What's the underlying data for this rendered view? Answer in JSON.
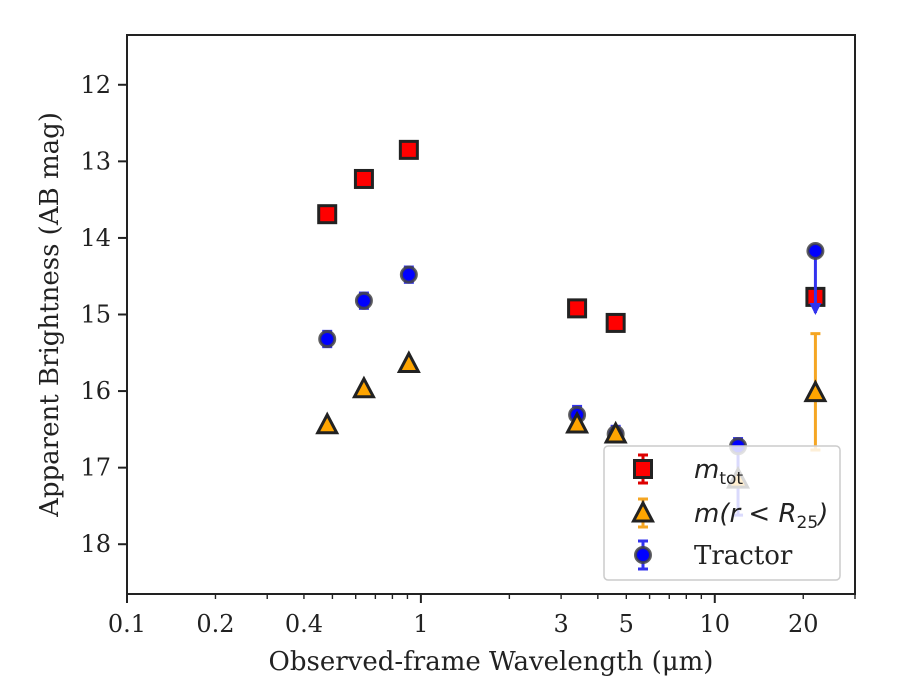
{
  "chart_data": {
    "type": "scatter",
    "xlabel": "Observed-frame Wavelength (μm)",
    "ylabel": "Apparent Brightness (AB mag)",
    "xscale": "log",
    "xlim": [
      0.1,
      30
    ],
    "ylim": [
      18.65,
      11.35
    ],
    "y_inverted": true,
    "x_ticks": [
      {
        "value": 0.1,
        "label": "0.1"
      },
      {
        "value": 0.2,
        "label": "0.2"
      },
      {
        "value": 0.4,
        "label": "0.4"
      },
      {
        "value": 1,
        "label": "1"
      },
      {
        "value": 3,
        "label": "3"
      },
      {
        "value": 5,
        "label": "5"
      },
      {
        "value": 10,
        "label": "10"
      },
      {
        "value": 20,
        "label": "20"
      }
    ],
    "y_ticks": [
      {
        "value": 12,
        "label": "12"
      },
      {
        "value": 13,
        "label": "13"
      },
      {
        "value": 14,
        "label": "14"
      },
      {
        "value": 15,
        "label": "15"
      },
      {
        "value": 16,
        "label": "16"
      },
      {
        "value": 17,
        "label": "17"
      },
      {
        "value": 18,
        "label": "18"
      }
    ],
    "grid": false,
    "legend_position": "lower-right",
    "series": [
      {
        "key": "mtot",
        "marker": "square",
        "fill": "#ff0000",
        "edge": "#222222",
        "errcolor": "#dd0000",
        "points": [
          {
            "x": 0.48,
            "y": 13.69
          },
          {
            "x": 0.64,
            "y": 13.23
          },
          {
            "x": 0.91,
            "y": 12.85
          },
          {
            "x": 3.4,
            "y": 14.92
          },
          {
            "x": 4.6,
            "y": 15.11
          },
          {
            "x": 22.0,
            "y": 14.77
          }
        ]
      },
      {
        "key": "mr25",
        "marker": "triangle",
        "fill": "#ffa500",
        "edge": "#222222",
        "errcolor": "#f5a623",
        "points": [
          {
            "x": 0.48,
            "y": 16.44
          },
          {
            "x": 0.64,
            "y": 15.97
          },
          {
            "x": 0.91,
            "y": 15.64
          },
          {
            "x": 3.4,
            "y": 16.43
          },
          {
            "x": 4.6,
            "y": 16.56
          },
          {
            "x": 12.0,
            "y": 17.15
          },
          {
            "x": 22.0,
            "y": 16.02,
            "err_low": 15.25,
            "err_high": 16.77
          }
        ]
      },
      {
        "key": "tractor",
        "name": "Tractor",
        "marker": "circle",
        "fill": "#0000ff",
        "edge": "#444444",
        "errcolor": "#3333ee",
        "points": [
          {
            "x": 0.48,
            "y": 15.32,
            "err_low": 15.22,
            "err_high": 15.42
          },
          {
            "x": 0.64,
            "y": 14.82,
            "err_low": 14.72,
            "err_high": 14.92
          },
          {
            "x": 0.91,
            "y": 14.48,
            "err_low": 14.38,
            "err_high": 14.58
          },
          {
            "x": 3.4,
            "y": 16.31,
            "err_low": 16.2,
            "err_high": 16.42
          },
          {
            "x": 4.6,
            "y": 16.56,
            "err_low": 16.46,
            "err_high": 16.66
          },
          {
            "x": 12.0,
            "y": 16.72,
            "err_low": 16.62,
            "err_high": 17.62
          },
          {
            "x": 22.0,
            "y": 14.17,
            "err_low": 14.12,
            "err_high": 14.98,
            "upper_limit": true
          }
        ]
      }
    ],
    "legend": [
      {
        "key": "mtot",
        "label_main": "m",
        "label_sub": "tot"
      },
      {
        "key": "mr25",
        "label_main": "m(r < R",
        "label_sub": "25",
        "label_tail": ")"
      },
      {
        "key": "tractor",
        "label": "Tractor"
      }
    ]
  }
}
